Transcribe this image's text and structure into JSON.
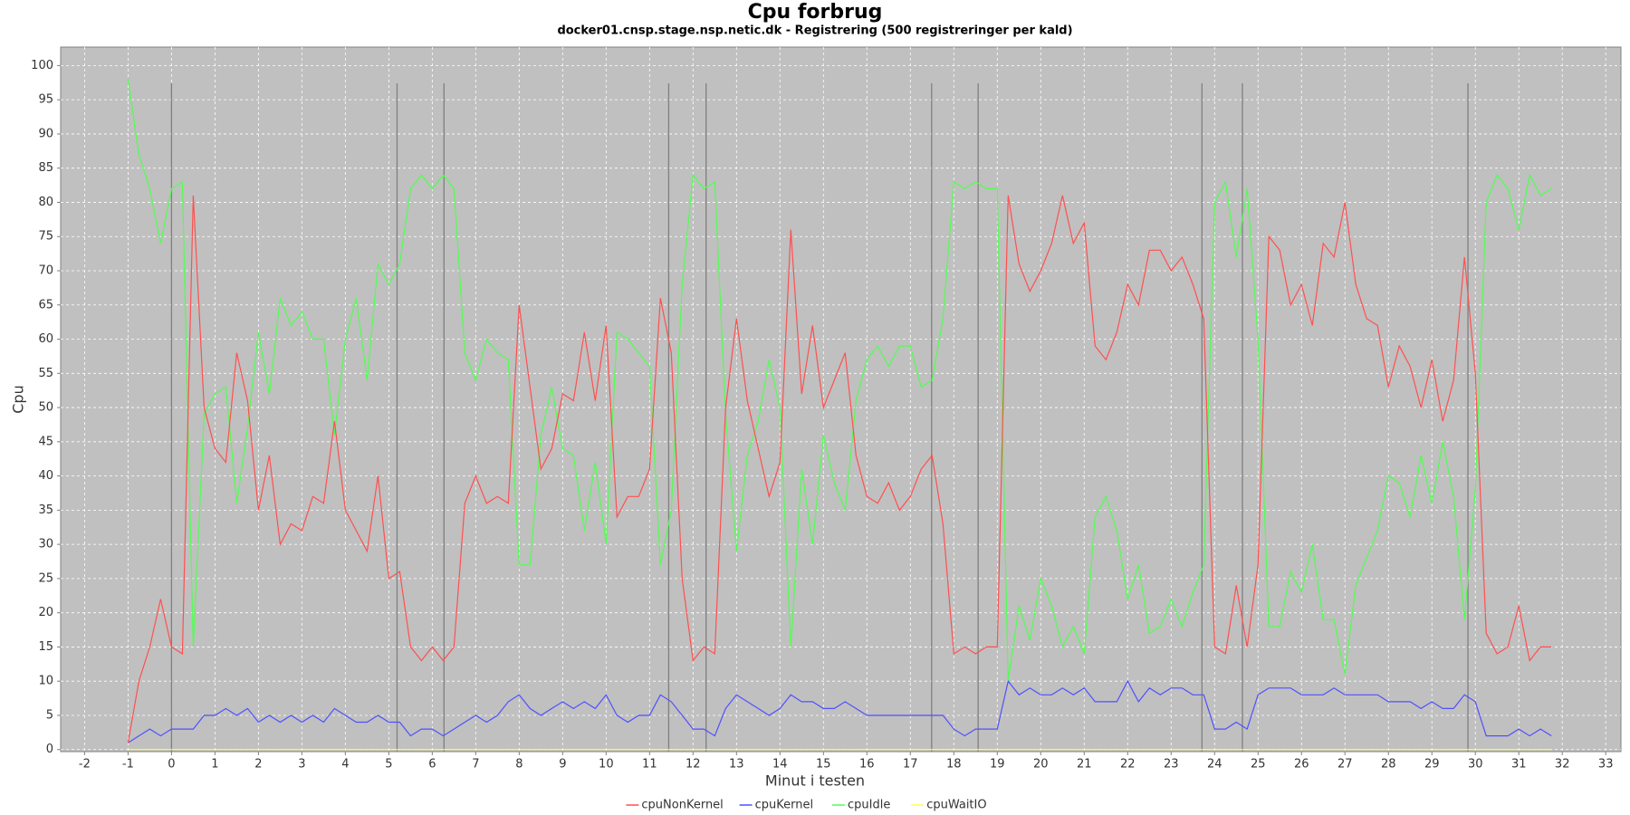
{
  "chart_data": {
    "type": "line",
    "title": "Cpu forbrug",
    "subtitle": "docker01.cnsp.stage.nsp.netic.dk - Registrering (500 registreringer per kald)",
    "x_label": "Minut i testen",
    "y_label": "Cpu",
    "x": [
      -1,
      -0.75,
      -0.5,
      -0.25,
      0,
      0.25,
      0.5,
      0.75,
      1,
      1.25,
      1.5,
      1.75,
      2,
      2.25,
      2.5,
      2.75,
      3,
      3.25,
      3.5,
      3.75,
      4,
      4.25,
      4.5,
      4.75,
      5,
      5.25,
      5.5,
      5.75,
      6,
      6.25,
      6.5,
      6.75,
      7,
      7.25,
      7.5,
      7.75,
      8,
      8.25,
      8.5,
      8.75,
      9,
      9.25,
      9.5,
      9.75,
      10,
      10.25,
      10.5,
      10.75,
      11,
      11.25,
      11.5,
      11.75,
      12,
      12.25,
      12.5,
      12.75,
      13,
      13.25,
      13.5,
      13.75,
      14,
      14.25,
      14.5,
      14.75,
      15,
      15.25,
      15.5,
      15.75,
      16,
      16.25,
      16.5,
      16.75,
      17,
      17.25,
      17.5,
      17.75,
      18,
      18.25,
      18.5,
      18.75,
      19,
      19.25,
      19.5,
      19.75,
      20,
      20.25,
      20.5,
      20.75,
      21,
      21.25,
      21.5,
      21.75,
      22,
      22.25,
      22.5,
      22.75,
      23,
      23.25,
      23.5,
      23.75,
      24,
      24.25,
      24.5,
      24.75,
      25,
      25.25,
      25.5,
      25.75,
      26,
      26.25,
      26.5,
      26.75,
      27,
      27.25,
      27.5,
      27.75,
      28,
      28.25,
      28.5,
      28.75,
      29,
      29.25,
      29.5,
      29.75,
      30,
      30.25,
      30.5,
      30.75,
      31,
      31.25,
      31.5,
      31.75
    ],
    "series": [
      {
        "name": "cpuNonKernel",
        "color": "#ff5050",
        "values": [
          1,
          10,
          15,
          22,
          15,
          14,
          81,
          50,
          44,
          42,
          58,
          51,
          35,
          43,
          30,
          33,
          32,
          37,
          36,
          48,
          35,
          32,
          29,
          40,
          25,
          26,
          15,
          13,
          15,
          13,
          15,
          36,
          40,
          36,
          37,
          36,
          65,
          53,
          41,
          44,
          52,
          51,
          61,
          51,
          62,
          34,
          37,
          37,
          41,
          66,
          58,
          25,
          13,
          15,
          14,
          50,
          63,
          51,
          44,
          37,
          42,
          76,
          52,
          62,
          50,
          54,
          58,
          43,
          37,
          36,
          39,
          35,
          37,
          41,
          43,
          33,
          14,
          15,
          14,
          15,
          15,
          81,
          71,
          67,
          70,
          74,
          81,
          74,
          77,
          59,
          57,
          61,
          68,
          65,
          73,
          73,
          70,
          72,
          68,
          63,
          15,
          14,
          24,
          15,
          27,
          75,
          73,
          65,
          68,
          62,
          74,
          72,
          80,
          68,
          63,
          62,
          53,
          59,
          56,
          50,
          57,
          48,
          54,
          72,
          55,
          17,
          14,
          15,
          21,
          13,
          15,
          15
        ]
      },
      {
        "name": "cpuKernel",
        "color": "#5050ff",
        "values": [
          1,
          2,
          3,
          2,
          3,
          3,
          3,
          5,
          5,
          6,
          5,
          6,
          4,
          5,
          4,
          5,
          4,
          5,
          4,
          6,
          5,
          4,
          4,
          5,
          4,
          4,
          2,
          3,
          3,
          2,
          3,
          4,
          5,
          4,
          5,
          7,
          8,
          6,
          5,
          6,
          7,
          6,
          7,
          6,
          8,
          5,
          4,
          5,
          5,
          8,
          7,
          5,
          3,
          3,
          2,
          6,
          8,
          7,
          6,
          5,
          6,
          8,
          7,
          7,
          6,
          6,
          7,
          6,
          5,
          5,
          5,
          5,
          5,
          5,
          5,
          5,
          3,
          2,
          3,
          3,
          3,
          10,
          8,
          9,
          8,
          8,
          9,
          8,
          9,
          7,
          7,
          7,
          10,
          7,
          9,
          8,
          9,
          9,
          8,
          8,
          3,
          3,
          4,
          3,
          8,
          9,
          9,
          9,
          8,
          8,
          8,
          9,
          8,
          8,
          8,
          8,
          7,
          7,
          7,
          6,
          7,
          6,
          6,
          8,
          7,
          2,
          2,
          2,
          3,
          2,
          3,
          2
        ]
      },
      {
        "name": "cpuIdle",
        "color": "#50ff50",
        "values": [
          98,
          87,
          82,
          74,
          82,
          83,
          15,
          49,
          52,
          53,
          36,
          47,
          61,
          52,
          66,
          62,
          64,
          60,
          60,
          46,
          60,
          66,
          54,
          71,
          68,
          71,
          82,
          84,
          82,
          84,
          82,
          58,
          54,
          60,
          58,
          57,
          27,
          27,
          46,
          53,
          44,
          43,
          32,
          42,
          30,
          61,
          60,
          58,
          56,
          27,
          35,
          68,
          84,
          82,
          83,
          49,
          29,
          43,
          48,
          57,
          50,
          15,
          41,
          30,
          46,
          39,
          35,
          51,
          57,
          59,
          56,
          59,
          59,
          53,
          54,
          63,
          83,
          82,
          83,
          82,
          82,
          10,
          21,
          16,
          25,
          21,
          15,
          18,
          14,
          34,
          37,
          32,
          22,
          27,
          17,
          18,
          22,
          18,
          23,
          27,
          80,
          83,
          72,
          82,
          60,
          18,
          18,
          26,
          23,
          30,
          19,
          19,
          11,
          24,
          28,
          32,
          40,
          39,
          34,
          43,
          36,
          45,
          37,
          19,
          38,
          80,
          84,
          82,
          76,
          84,
          81,
          82
        ]
      },
      {
        "name": "cpuWaitIO",
        "color": "#ffff50",
        "values": [
          0,
          0,
          0,
          0,
          0,
          0,
          0,
          0,
          0,
          0,
          0,
          0,
          0,
          0,
          0,
          0,
          0,
          0,
          0,
          0,
          0,
          0,
          0,
          0,
          0,
          0,
          0,
          0,
          0,
          0,
          0,
          0,
          0,
          0,
          0,
          0,
          0,
          0,
          0,
          0,
          0,
          0,
          0,
          0,
          0,
          0,
          0,
          0,
          0,
          0,
          0,
          0,
          0,
          0,
          0,
          0,
          0,
          0,
          0,
          0,
          0,
          0,
          0,
          0,
          0,
          0,
          0,
          0,
          0,
          0,
          0,
          0,
          0,
          0,
          0,
          0,
          0,
          0,
          0,
          0,
          0,
          0,
          0,
          0,
          0,
          0,
          0,
          0,
          0,
          0,
          0,
          0,
          0,
          0,
          0,
          0,
          0,
          0,
          0,
          0,
          0,
          0,
          0,
          0,
          0,
          0,
          0,
          0,
          0,
          0,
          0,
          0,
          0,
          0,
          0,
          0,
          0,
          0,
          0,
          0,
          0,
          0,
          0,
          0,
          0,
          0,
          0,
          0,
          0,
          0,
          0,
          0
        ]
      }
    ],
    "markers": [
      0,
      5.19,
      6.27,
      11.44,
      12.3,
      17.49,
      18.56,
      23.71,
      24.64,
      29.83
    ],
    "marker_color": "#808080",
    "xlim": [
      -2.55,
      33.35
    ],
    "ylim": [
      -0.3,
      102.7
    ],
    "xticks": [
      -2,
      -1,
      0,
      1,
      2,
      3,
      4,
      5,
      6,
      7,
      8,
      9,
      10,
      11,
      12,
      13,
      14,
      15,
      16,
      17,
      18,
      19,
      20,
      21,
      22,
      23,
      24,
      25,
      26,
      27,
      28,
      29,
      30,
      31,
      32,
      33
    ],
    "yticks": [
      0,
      5,
      10,
      15,
      20,
      25,
      30,
      35,
      40,
      45,
      50,
      55,
      60,
      65,
      70,
      75,
      80,
      85,
      90,
      95,
      100
    ],
    "grid": true,
    "legend": "bottom"
  }
}
